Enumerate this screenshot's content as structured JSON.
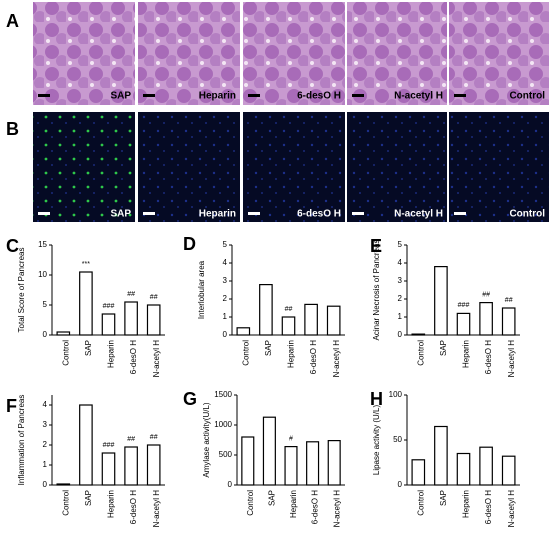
{
  "figure": {
    "panel_a": {
      "letter": "A",
      "captions": [
        "SAP",
        "Heparin",
        "6-desO H",
        "N-acetyl H",
        "Control"
      ]
    },
    "panel_b": {
      "letter": "B",
      "captions": [
        "SAP",
        "Heparin",
        "6-desO H",
        "N-acetyl H",
        "Control"
      ]
    }
  },
  "chart_data": [
    {
      "type": "bar",
      "letter": "C",
      "y_label": "Total Score of Pancreas",
      "categories": [
        "Control",
        "SAP",
        "Heparin",
        "6-desO H",
        "N-acetyl H"
      ],
      "values": [
        0.5,
        10.5,
        3.5,
        5.5,
        5
      ],
      "ylim": [
        0,
        15
      ],
      "yticks": [
        0,
        5,
        10,
        15
      ],
      "annotations": [
        {
          "text": "***",
          "category": "SAP"
        },
        {
          "text": "###",
          "category": "Heparin"
        },
        {
          "text": "##",
          "category": "6-desO H"
        },
        {
          "text": "##",
          "category": "N-acetyl H"
        }
      ]
    },
    {
      "type": "bar",
      "letter": "D",
      "y_label": "Interlobular area",
      "categories": [
        "Control",
        "SAP",
        "Heparin",
        "6-desO H",
        "N-acetyl H"
      ],
      "values": [
        0.4,
        2.8,
        1.0,
        1.7,
        1.6
      ],
      "ylim": [
        0,
        5
      ],
      "yticks": [
        0,
        1,
        2,
        3,
        4,
        5
      ],
      "annotations": [
        {
          "text": "##",
          "category": "Heparin"
        }
      ]
    },
    {
      "type": "bar",
      "letter": "E",
      "y_label": "Acinar Necrosis of Pancreas",
      "categories": [
        "Control",
        "SAP",
        "Heparin",
        "6-desO H",
        "N-acetyl H"
      ],
      "values": [
        0.05,
        3.8,
        1.2,
        1.8,
        1.5
      ],
      "ylim": [
        0,
        5
      ],
      "yticks": [
        0,
        1,
        2,
        3,
        4,
        5
      ],
      "annotations": [
        {
          "text": "###",
          "category": "Heparin"
        },
        {
          "text": "##",
          "category": "6-desO H"
        },
        {
          "text": "##",
          "category": "N-acetyl H"
        }
      ]
    },
    {
      "type": "bar",
      "letter": "F",
      "y_label": "Inflammation of Pancreas",
      "categories": [
        "Control",
        "SAP",
        "Heparin",
        "6-desO H",
        "N-acetyl H"
      ],
      "values": [
        0.05,
        4.0,
        1.6,
        1.9,
        2.0
      ],
      "ylim": [
        0,
        4.5
      ],
      "yticks": [
        0,
        1,
        2,
        3,
        4
      ],
      "annotations": [
        {
          "text": "###",
          "category": "Heparin"
        },
        {
          "text": "##",
          "category": "6-desO H"
        },
        {
          "text": "##",
          "category": "N-acetyl H"
        }
      ]
    },
    {
      "type": "bar",
      "letter": "G",
      "y_label": "Amylase activity(U/L)",
      "categories": [
        "Control",
        "SAP",
        "Heparin",
        "6-desO H",
        "N-acetyl H"
      ],
      "values": [
        800,
        1130,
        640,
        720,
        740
      ],
      "ylim": [
        0,
        1500
      ],
      "yticks": [
        0,
        500,
        1000,
        1500
      ],
      "annotations": [
        {
          "text": "#",
          "category": "Heparin"
        }
      ]
    },
    {
      "type": "bar",
      "letter": "H",
      "y_label": "Lipase activity (U/L)",
      "categories": [
        "Control",
        "SAP",
        "Heparin",
        "6-desO H",
        "N-acetyl H"
      ],
      "values": [
        28,
        65,
        35,
        42,
        32
      ],
      "ylim": [
        0,
        100
      ],
      "yticks": [
        0,
        50,
        100
      ],
      "annotations": []
    }
  ]
}
